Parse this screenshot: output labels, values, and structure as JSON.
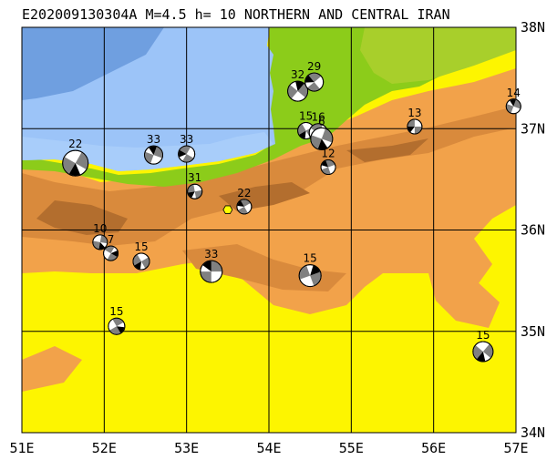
{
  "title": "E202009130304A M=4.5 h= 10 NORTHERN AND CENTRAL IRAN",
  "map": {
    "lon_range": [
      51,
      57
    ],
    "lat_range": [
      34,
      38
    ],
    "lon_ticks": [
      "51E",
      "52E",
      "53E",
      "54E",
      "55E",
      "56E",
      "57E"
    ],
    "lat_ticks": [
      "38N",
      "37N",
      "36N",
      "35N",
      "34N"
    ],
    "grid": true,
    "colors": {
      "sea_deep": "#6f9fe0",
      "sea": "#9cc4f8",
      "sea_shallow": "#a8cdfa",
      "lowland": "#8ccc1a",
      "low_green": "#a8cf2b",
      "plain": "#fdf500",
      "highland": "#f2a24a",
      "mountain": "#d98a3c",
      "peak": "#b36e2e",
      "grid": "#000000"
    },
    "epicenter": {
      "lon": 53.5,
      "lat": 36.2,
      "color": "#ffff00"
    }
  },
  "events": [
    {
      "label": "22",
      "lon": 51.65,
      "lat": 36.66,
      "r": 14,
      "rot": 30
    },
    {
      "label": "33",
      "lon": 52.6,
      "lat": 36.74,
      "r": 10,
      "rot": 200
    },
    {
      "label": "33",
      "lon": 53.0,
      "lat": 36.75,
      "r": 9,
      "rot": 120
    },
    {
      "label": "31",
      "lon": 53.1,
      "lat": 36.38,
      "r": 8,
      "rot": 80
    },
    {
      "label": "22",
      "lon": 53.7,
      "lat": 36.23,
      "r": 8,
      "rot": 150
    },
    {
      "label": "10",
      "lon": 51.95,
      "lat": 35.88,
      "r": 8,
      "rot": 10
    },
    {
      "label": "7",
      "lon": 52.08,
      "lat": 35.77,
      "r": 8,
      "rot": 300
    },
    {
      "label": "15",
      "lon": 52.45,
      "lat": 35.69,
      "r": 9,
      "rot": 60
    },
    {
      "label": "33",
      "lon": 53.3,
      "lat": 35.59,
      "r": 12,
      "rot": 180
    },
    {
      "label": "15",
      "lon": 54.5,
      "lat": 35.55,
      "r": 12,
      "rot": 250
    },
    {
      "label": "15",
      "lon": 52.15,
      "lat": 35.05,
      "r": 9,
      "rot": 330
    },
    {
      "label": "15",
      "lon": 56.6,
      "lat": 34.8,
      "r": 11,
      "rot": 40
    },
    {
      "label": "12",
      "lon": 54.72,
      "lat": 36.62,
      "r": 8,
      "rot": 160
    },
    {
      "label": "13",
      "lon": 55.77,
      "lat": 37.02,
      "r": 8,
      "rot": 90
    },
    {
      "label": "14",
      "lon": 56.97,
      "lat": 37.22,
      "r": 8,
      "rot": 200
    },
    {
      "label": "32",
      "lon": 54.35,
      "lat": 37.37,
      "r": 11,
      "rot": 220
    },
    {
      "label": "29",
      "lon": 54.55,
      "lat": 37.46,
      "r": 10,
      "rot": 140
    },
    {
      "label": "15",
      "lon": 54.45,
      "lat": 36.98,
      "r": 9,
      "rot": 60
    },
    {
      "label": "16",
      "lon": 54.6,
      "lat": 36.96,
      "r": 10,
      "rot": 300
    },
    {
      "label": "6",
      "lon": 54.64,
      "lat": 36.9,
      "r": 12,
      "rot": 20
    }
  ]
}
